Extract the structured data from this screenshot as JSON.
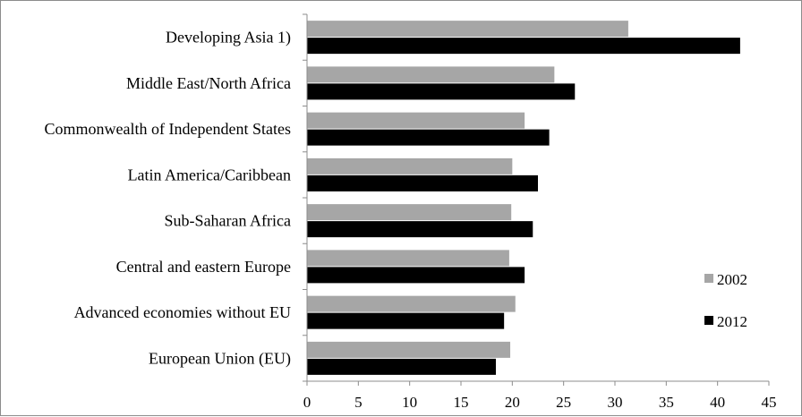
{
  "chart_data": {
    "type": "bar",
    "orientation": "horizontal",
    "categories": [
      "Developing Asia 1)",
      "Middle East/North Africa",
      "Commonwealth of Independent States",
      "Latin America/Caribbean",
      "Sub-Saharan Africa",
      "Central and eastern Europe",
      "Advanced economies without EU",
      "European Union (EU)"
    ],
    "series": [
      {
        "name": "2002",
        "color": "#a6a6a6",
        "values": [
          31.3,
          24.1,
          21.2,
          20.0,
          19.9,
          19.7,
          20.3,
          19.8
        ]
      },
      {
        "name": "2012",
        "color": "#000000",
        "values": [
          42.2,
          26.1,
          23.6,
          22.5,
          22.0,
          21.2,
          19.2,
          18.4
        ]
      }
    ],
    "xlim": [
      0,
      45
    ],
    "xticks": [
      "0",
      "5",
      "10",
      "15",
      "20",
      "25",
      "30",
      "35",
      "40",
      "45"
    ],
    "grid": false,
    "legend_position": "right"
  }
}
